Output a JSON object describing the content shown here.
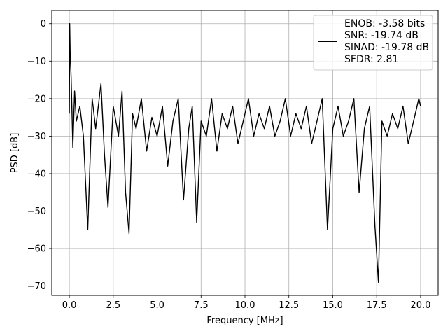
{
  "chart_data": {
    "type": "line",
    "title": "",
    "xlabel": "Frequency [MHz]",
    "ylabel": "PSD [dB]",
    "xlim": [
      -1,
      21
    ],
    "ylim": [
      -72.5,
      3.5
    ],
    "xticks": [
      0.0,
      2.5,
      5.0,
      7.5,
      10.0,
      12.5,
      15.0,
      17.5,
      20.0
    ],
    "xtick_labels": [
      "0.0",
      "2.5",
      "5.0",
      "7.5",
      "10.0",
      "12.5",
      "15.0",
      "17.5",
      "20.0"
    ],
    "yticks": [
      0,
      -10,
      -20,
      -30,
      -40,
      -50,
      -60,
      -70
    ],
    "ytick_labels": [
      "0",
      "−10",
      "−20",
      "−30",
      "−40",
      "−50",
      "−60",
      "−70"
    ],
    "grid": true,
    "legend_position": "top-right",
    "line_color": "#000000",
    "series": [
      {
        "legend_lines": [
          "ENOB: -3.58 bits",
          "SNR: -19.74 dB",
          "SINAD: -19.78 dB",
          "SFDR: 2.81"
        ],
        "x": [
          0.0,
          0.02,
          0.05,
          0.1,
          0.2,
          0.3,
          0.4,
          0.6,
          0.8,
          1.05,
          1.3,
          1.5,
          1.8,
          2.0,
          2.2,
          2.5,
          2.8,
          3.0,
          3.2,
          3.4,
          3.6,
          3.8,
          4.1,
          4.4,
          4.7,
          5.0,
          5.3,
          5.6,
          5.9,
          6.2,
          6.5,
          6.8,
          7.0,
          7.25,
          7.5,
          7.8,
          8.1,
          8.4,
          8.7,
          9.0,
          9.3,
          9.6,
          9.9,
          10.2,
          10.5,
          10.8,
          11.1,
          11.4,
          11.7,
          12.0,
          12.3,
          12.6,
          12.9,
          13.2,
          13.5,
          13.8,
          14.1,
          14.4,
          14.7,
          15.0,
          15.3,
          15.6,
          15.9,
          16.2,
          16.5,
          16.8,
          17.1,
          17.4,
          17.6,
          17.8,
          18.1,
          18.4,
          18.7,
          19.0,
          19.3,
          19.6,
          19.9,
          20.0
        ],
        "y": [
          -24,
          0,
          -8,
          -14,
          -33,
          -18,
          -26,
          -22,
          -30,
          -55,
          -20,
          -28,
          -16,
          -35,
          -49,
          -22,
          -30,
          -18,
          -45,
          -56,
          -24,
          -28,
          -20,
          -34,
          -25,
          -30,
          -22,
          -38,
          -26,
          -20,
          -47,
          -28,
          -22,
          -53,
          -26,
          -30,
          -20,
          -34,
          -24,
          -28,
          -22,
          -32,
          -26,
          -20,
          -30,
          -24,
          -28,
          -22,
          -30,
          -26,
          -20,
          -30,
          -24,
          -28,
          -22,
          -32,
          -26,
          -20,
          -55,
          -28,
          -22,
          -30,
          -26,
          -20,
          -45,
          -28,
          -22,
          -54,
          -69,
          -26,
          -30,
          -24,
          -28,
          -22,
          -32,
          -26,
          -20,
          -22
        ]
      }
    ]
  }
}
